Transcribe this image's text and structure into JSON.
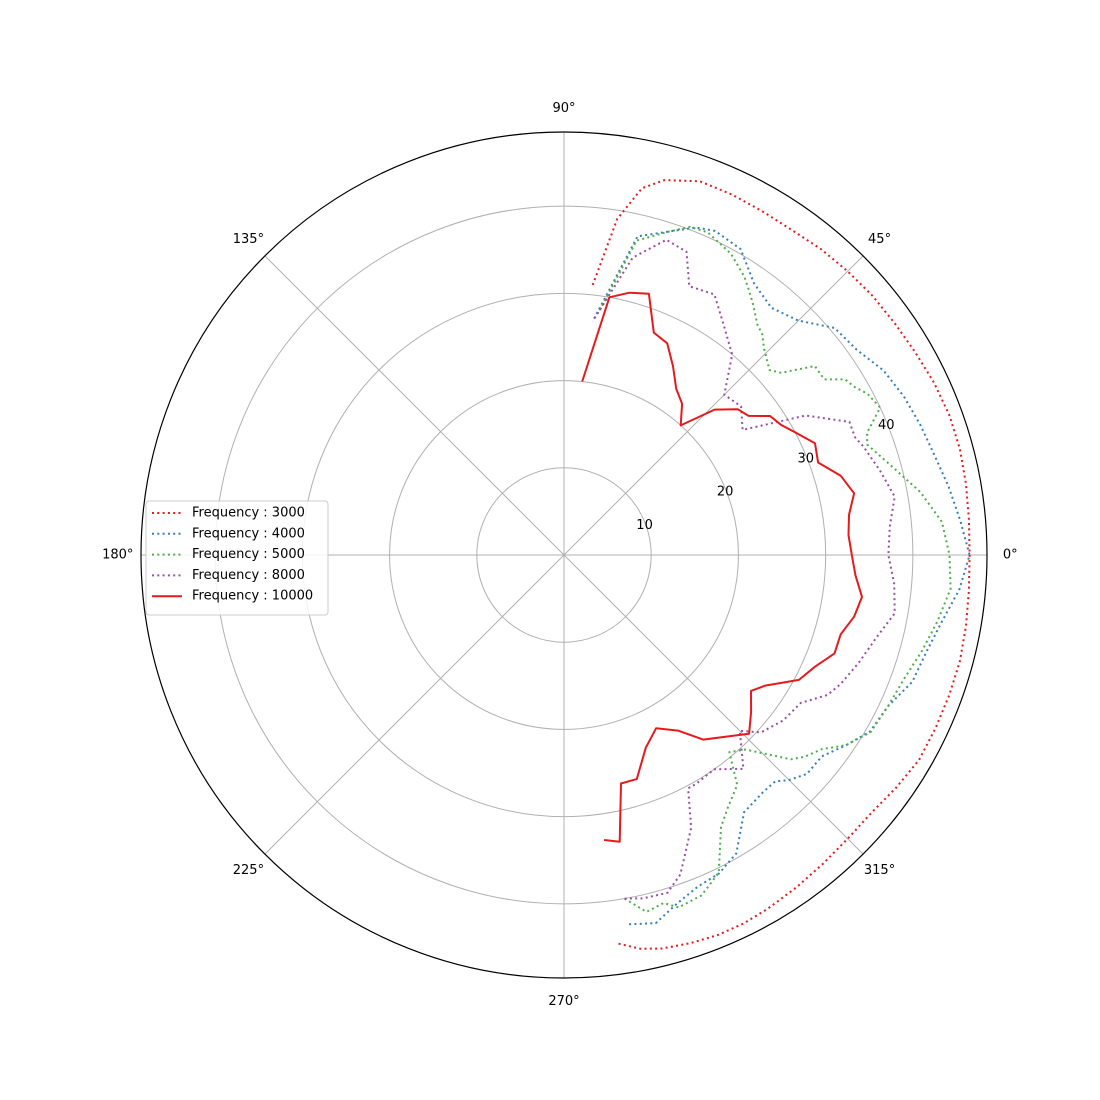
{
  "chart_data": {
    "type": "line",
    "projection": "polar",
    "angle_unit": "degrees",
    "theta_ticks": [
      "0°",
      "45°",
      "90°",
      "135°",
      "180°",
      "225°",
      "270°",
      "315°"
    ],
    "theta_tick_values": [
      0,
      45,
      90,
      135,
      180,
      225,
      270,
      315
    ],
    "r_ticks": [
      "10",
      "20",
      "30",
      "40"
    ],
    "r_tick_values": [
      10,
      20,
      30,
      40
    ],
    "r_label_angle": 22.5,
    "rlim": [
      0,
      48.5
    ],
    "grid": true,
    "legend_position": "center-left",
    "series": [
      {
        "name": "Frequency : 3000",
        "color": "#e41a1c",
        "linestyle": "dotted",
        "theta": [
          -82,
          -79,
          -76,
          -72,
          -68,
          -64,
          -60,
          -55,
          -50,
          -45,
          -40,
          -35,
          -30,
          -25,
          -20,
          -15,
          -10,
          -5,
          0,
          5,
          10,
          15,
          20,
          25,
          30,
          35,
          40,
          45,
          50,
          55,
          60,
          65,
          70,
          75,
          78,
          81,
          84
        ],
        "r": [
          45,
          46,
          46.5,
          46.8,
          47,
          47,
          46.8,
          46.5,
          46.2,
          46,
          46,
          46.5,
          47,
          47,
          47,
          47,
          46.8,
          46.6,
          46.5,
          46.6,
          46.8,
          47,
          47,
          46.8,
          46.5,
          46.3,
          46.2,
          46,
          45.8,
          45.5,
          45.5,
          45.6,
          45.6,
          44.5,
          43,
          39,
          31
        ]
      },
      {
        "name": "Frequency : 4000",
        "color": "#377eb8",
        "linestyle": "dotted",
        "theta": [
          -80,
          -76,
          -72,
          -68,
          -64,
          -60,
          -55,
          -50,
          -47,
          -45,
          -42,
          -38,
          -34,
          -30,
          -25,
          -20,
          -15,
          -10,
          -5,
          0,
          5,
          10,
          15,
          20,
          25,
          30,
          35,
          40,
          45,
          50,
          55,
          60,
          65,
          68,
          72,
          77,
          83
        ],
        "r": [
          43,
          43.5,
          42,
          41,
          40.6,
          39.5,
          36,
          35.5,
          35.5,
          36.5,
          37.5,
          37.5,
          39,
          40.5,
          41,
          42.5,
          43,
          44,
          45.5,
          46.5,
          45.6,
          44.8,
          44,
          43.5,
          43,
          42.3,
          41,
          40.5,
          38,
          37,
          38,
          40.5,
          41,
          40.5,
          39,
          37.5,
          27
        ]
      },
      {
        "name": "Frequency : 5000",
        "color": "#4daf4a",
        "linestyle": "dotted",
        "theta": [
          -80,
          -77,
          -74,
          -72,
          -68,
          -64,
          -60,
          -57,
          -53,
          -50,
          -47,
          -42,
          -40,
          -37,
          -34,
          -30,
          -25,
          -20,
          -15,
          -10,
          -5,
          0,
          5,
          10,
          15,
          20,
          22,
          25,
          28,
          30,
          32,
          34,
          37,
          40,
          42,
          46,
          48,
          50,
          53,
          55,
          57,
          61,
          66,
          69,
          72,
          77,
          82
        ],
        "r": [
          40,
          42,
          41.5,
          42.5,
          42.1,
          40.5,
          36,
          34.5,
          33,
          29.5,
          30.5,
          35,
          36,
          37,
          39,
          40.6,
          41,
          41.5,
          42.5,
          43.5,
          44.5,
          44.2,
          43.5,
          41.5,
          39,
          37,
          37.5,
          40,
          39.4,
          38.5,
          38,
          36,
          36,
          32.5,
          31.7,
          33,
          34,
          34.5,
          36,
          37,
          38,
          39.5,
          40.5,
          40.3,
          39,
          37,
          28
        ]
      },
      {
        "name": "Frequency : 8000",
        "color": "#984ea3",
        "linestyle": "dotted",
        "theta": [
          -80,
          -77,
          -73,
          -70,
          -65,
          -62,
          -60,
          -55,
          -50,
          -45,
          -42,
          -37,
          -32,
          -28,
          -25,
          -20,
          -15,
          -10,
          -5,
          0,
          5,
          10,
          15,
          20,
          22,
          25,
          30,
          35,
          40,
          45,
          50,
          55,
          60,
          65,
          68,
          72,
          77,
          83
        ],
        "r": [
          40,
          40.4,
          40.5,
          39,
          34.5,
          30.3,
          30.3,
          30,
          32,
          28.5,
          30.4,
          31.5,
          32,
          34.2,
          35,
          36,
          37,
          38.5,
          38,
          37.2,
          37.5,
          38.5,
          37.5,
          36.5,
          36,
          36.1,
          32,
          25,
          26.5,
          26,
          30,
          32,
          34.5,
          34,
          37.5,
          38,
          35,
          27
        ]
      },
      {
        "name": "Frequency : 10000",
        "color": "#e41a1c",
        "linestyle": "solid",
        "theta": [
          -82,
          -79,
          -76,
          -72,
          -67,
          -62,
          -57,
          -53,
          -48,
          -44,
          -40,
          -36,
          -33,
          -28,
          -24,
          -20,
          -16,
          -12,
          -8,
          -4,
          0,
          4,
          8,
          12,
          16,
          20,
          24,
          28,
          31,
          34,
          37,
          40,
          44,
          48,
          52,
          56,
          60,
          64,
          68,
          72,
          76,
          80,
          84
        ],
        "r": [
          33,
          33.5,
          27,
          27,
          24,
          22.5,
          24,
          26.5,
          28,
          29.5,
          28,
          26.5,
          27.5,
          30.5,
          31.5,
          33,
          33,
          34,
          34.5,
          33.5,
          33,
          32.7,
          33,
          34,
          33,
          31,
          31.5,
          30,
          29,
          28.5,
          26.5,
          26,
          24,
          20,
          22,
          23,
          25,
          27,
          27.5,
          31.5,
          31,
          30,
          20
        ]
      }
    ]
  }
}
